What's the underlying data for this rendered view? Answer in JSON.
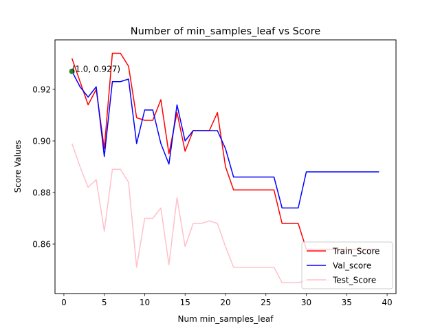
{
  "chart_data": {
    "type": "line",
    "title": "Number of min_samples_leaf vs Score",
    "xlabel": "Num min_samples_leaf",
    "ylabel": "Score Values",
    "xlim": [
      -1.1,
      41.1
    ],
    "ylim": [
      0.8408,
      0.9392
    ],
    "xticks": [
      0,
      5,
      10,
      15,
      20,
      25,
      30,
      35,
      40
    ],
    "yticks": [
      0.86,
      0.88,
      0.9,
      0.92
    ],
    "xtick_labels": [
      "0",
      "5",
      "10",
      "15",
      "20",
      "25",
      "30",
      "35",
      "40"
    ],
    "ytick_labels": [
      "0.86",
      "0.88",
      "0.90",
      "0.92"
    ],
    "x": [
      1,
      2,
      3,
      4,
      5,
      6,
      7,
      8,
      9,
      10,
      11,
      12,
      13,
      14,
      15,
      16,
      17,
      18,
      19,
      20,
      21,
      22,
      23,
      24,
      25,
      26,
      27,
      28,
      29,
      30,
      31,
      32,
      33,
      34,
      35,
      36,
      37,
      38,
      39
    ],
    "grid": false,
    "legend_position": "lower right",
    "series": [
      {
        "name": "Train_Score",
        "color": "#ff0000",
        "values": [
          0.932,
          0.923,
          0.914,
          0.92,
          0.897,
          0.934,
          0.934,
          0.929,
          0.909,
          0.908,
          0.908,
          0.916,
          0.895,
          0.911,
          0.896,
          0.904,
          0.904,
          0.904,
          0.911,
          0.89,
          0.881,
          0.881,
          0.881,
          0.881,
          0.881,
          0.881,
          0.868,
          0.868,
          0.868,
          0.858,
          0.858,
          0.858,
          0.858,
          0.858,
          0.858,
          0.858,
          0.858,
          0.858,
          0.858
        ]
      },
      {
        "name": "Val_score",
        "color": "#0000ff",
        "values": [
          0.927,
          0.921,
          0.917,
          0.921,
          0.894,
          0.923,
          0.923,
          0.924,
          0.899,
          0.912,
          0.912,
          0.899,
          0.891,
          0.914,
          0.9,
          0.904,
          0.904,
          0.904,
          0.904,
          0.897,
          0.886,
          0.886,
          0.886,
          0.886,
          0.886,
          0.886,
          0.874,
          0.874,
          0.874,
          0.888,
          0.888,
          0.888,
          0.888,
          0.888,
          0.888,
          0.888,
          0.888,
          0.888,
          0.888
        ]
      },
      {
        "name": "Test_Score",
        "color": "#ffc0cb",
        "values": [
          0.899,
          0.89,
          0.882,
          0.885,
          0.865,
          0.889,
          0.889,
          0.884,
          0.851,
          0.87,
          0.87,
          0.874,
          0.852,
          0.878,
          0.859,
          0.868,
          0.868,
          0.869,
          0.868,
          0.859,
          0.851,
          0.851,
          0.851,
          0.851,
          0.851,
          0.851,
          0.845,
          0.845,
          0.845,
          0.846,
          0.846,
          0.846,
          0.846,
          0.846,
          0.846,
          0.846,
          0.846,
          0.846,
          0.846
        ]
      }
    ],
    "highlight_point": {
      "x": 1.0,
      "y": 0.927,
      "color": "#2e7d32"
    },
    "annotation": "(1.0, 0.927)"
  }
}
